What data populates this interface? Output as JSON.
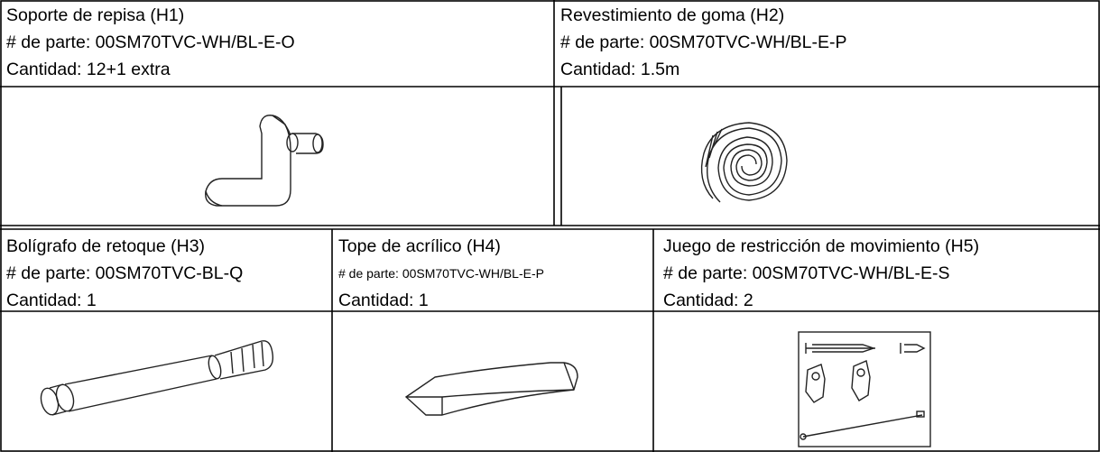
{
  "parts": [
    {
      "name": "Soporte de repisa (H1)",
      "part_number": "# de parte: 00SM70TVC-WH/BL-E-O",
      "quantity": "Cantidad: 12+1 extra"
    },
    {
      "name": "Revestimiento de goma (H2)",
      "part_number": "# de parte: 00SM70TVC-WH/BL-E-P",
      "quantity": "Cantidad: 1.5m"
    },
    {
      "name": "Bolígrafo de retoque (H3)",
      "part_number": "# de parte: 00SM70TVC-BL-Q",
      "quantity": "Cantidad: 1"
    },
    {
      "name": "Tope de acrílico (H4)",
      "part_number": "# de parte: 00SM70TVC-WH/BL-E-P",
      "quantity": "Cantidad: 1"
    },
    {
      "name": "Juego de restricción de movimiento (H5)",
      "part_number": "# de parte: 00SM70TVC-WH/BL-E-S",
      "quantity": "Cantidad: 2"
    }
  ]
}
